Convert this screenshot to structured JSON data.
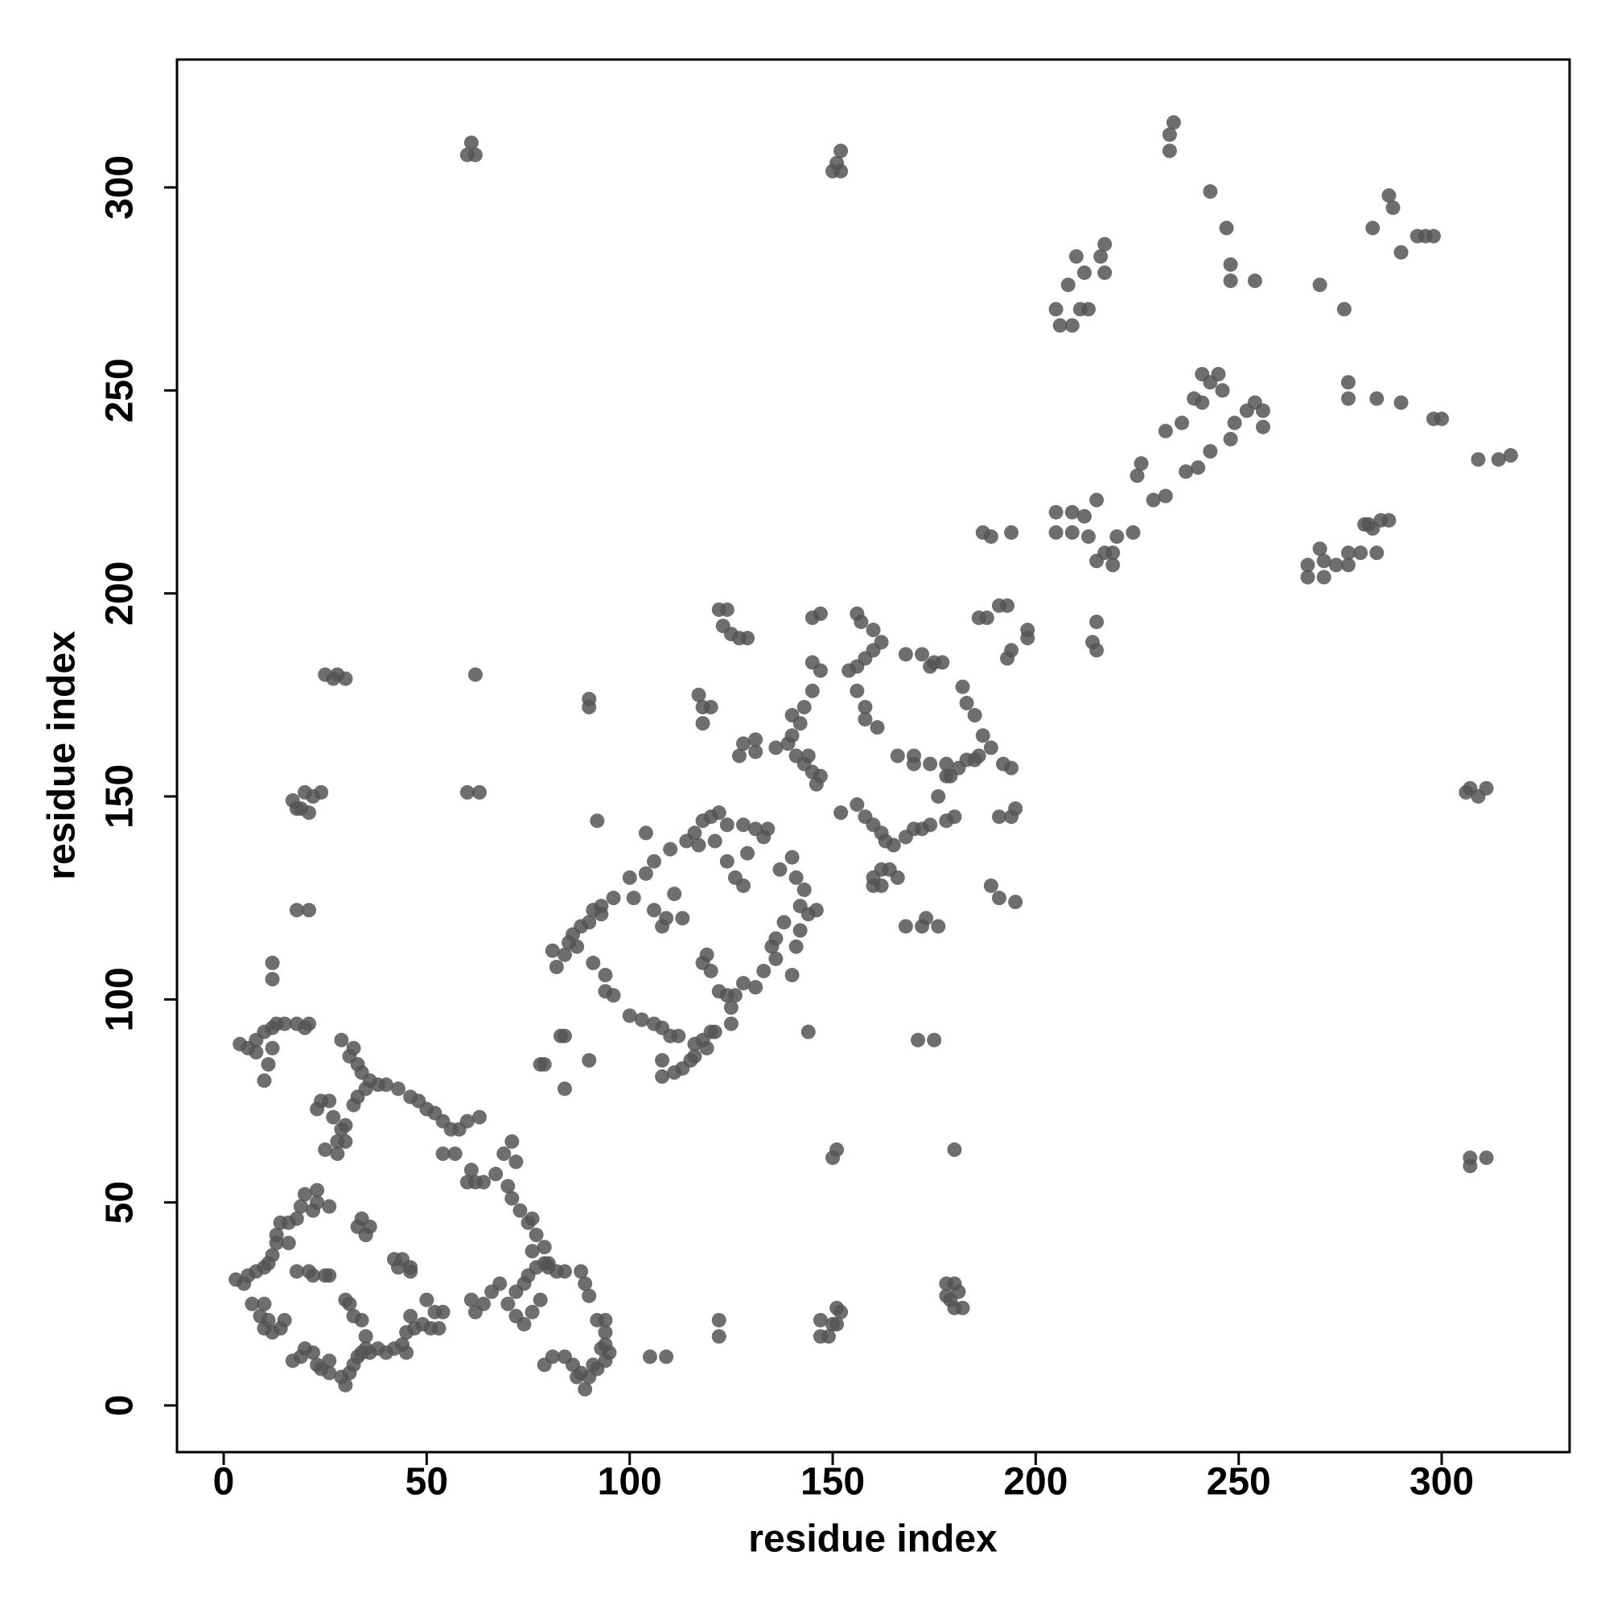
{
  "chart_data": {
    "type": "scatter",
    "xlabel": "residue index",
    "ylabel": "residue index",
    "color": "#555555",
    "xlim": [
      -11.5,
      331.5
    ],
    "ylim": [
      -11.5,
      331.5
    ],
    "xticks": [
      0,
      50,
      100,
      150,
      200,
      250,
      300
    ],
    "yticks": [
      0,
      50,
      100,
      150,
      200,
      250,
      300
    ],
    "x": [
      60,
      61,
      62,
      150,
      151,
      152,
      152,
      233,
      233,
      234,
      243,
      247,
      248,
      248,
      254,
      287,
      288,
      283,
      290,
      294,
      296,
      298,
      205,
      206,
      208,
      209,
      210,
      211,
      212,
      216,
      217,
      217,
      213,
      270,
      276,
      241,
      243,
      245,
      246,
      239,
      241,
      236,
      232,
      249,
      252,
      254,
      256,
      256,
      248,
      243,
      240,
      237,
      232,
      229,
      225,
      226,
      277,
      277,
      284,
      290,
      298,
      300,
      309,
      314,
      317,
      205,
      209,
      212,
      215,
      205,
      209,
      213,
      219,
      215,
      219,
      220,
      224,
      217,
      187,
      189,
      194,
      215,
      214,
      215,
      267,
      267,
      270,
      271,
      271,
      274,
      277,
      277,
      281,
      280,
      283,
      285,
      287,
      284,
      282,
      306,
      307,
      309,
      311,
      307,
      307,
      311,
      122,
      124,
      123,
      125,
      127,
      129,
      145,
      147,
      145,
      147,
      145,
      143,
      140,
      140,
      139,
      142,
      141,
      143,
      145,
      147,
      146,
      144,
      156,
      157,
      160,
      162,
      160,
      158,
      156,
      154,
      156,
      158,
      158,
      161,
      168,
      172,
      175,
      177,
      174,
      182,
      183,
      185,
      187,
      183,
      181,
      179,
      185,
      189,
      186,
      192,
      194,
      195,
      194,
      191,
      195,
      191,
      189,
      193,
      194,
      198,
      198,
      186,
      188,
      191,
      193,
      166,
      170,
      170,
      174,
      178,
      178,
      178,
      180,
      176,
      152,
      156,
      158,
      160,
      162,
      163,
      165,
      168,
      170,
      172,
      174,
      160,
      162,
      162,
      164,
      166,
      160,
      168,
      172,
      173,
      176,
      171,
      175,
      180,
      117,
      118,
      118,
      120,
      131,
      131,
      127,
      128,
      136,
      104,
      100,
      104,
      106,
      110,
      114,
      116,
      118,
      120,
      122,
      124,
      128,
      131,
      134,
      133,
      129,
      124,
      126,
      128,
      121,
      117,
      137,
      140,
      141,
      143,
      142,
      144,
      146,
      138,
      136,
      135,
      136,
      133,
      131,
      128,
      126,
      124,
      140,
      141,
      142,
      101,
      96,
      93,
      90,
      88,
      86,
      85,
      84,
      81,
      82,
      87,
      91,
      93,
      91,
      94,
      94,
      96,
      100,
      103,
      106,
      108,
      110,
      112,
      116,
      118,
      119,
      120,
      121,
      116,
      113,
      111,
      108,
      108,
      119,
      120,
      118,
      122,
      125,
      125,
      115,
      109,
      108,
      113,
      111,
      106,
      84,
      83,
      78,
      79,
      84,
      90,
      92,
      90,
      90,
      144,
      62,
      60,
      63,
      25,
      27,
      28,
      30,
      17,
      18,
      20,
      22,
      24,
      21,
      19,
      18,
      21,
      12,
      12,
      4,
      6,
      8,
      8,
      10,
      12,
      13,
      15,
      18,
      20,
      21,
      12,
      11,
      10,
      29,
      32,
      33,
      34,
      36,
      40,
      43,
      46,
      48,
      50,
      52,
      54,
      56,
      58,
      31,
      24,
      23,
      26,
      27,
      29,
      28,
      28,
      25,
      30,
      30,
      32,
      33,
      35,
      38,
      54,
      57,
      60,
      63,
      60,
      62,
      61,
      64,
      67,
      70,
      71,
      73,
      75,
      77,
      79,
      80,
      82,
      84,
      88,
      89,
      90,
      76,
      69,
      71,
      72,
      61,
      62,
      64,
      66,
      68,
      70,
      72,
      74,
      76,
      72,
      74,
      75,
      77,
      79,
      76,
      78,
      80,
      79,
      81,
      84,
      86,
      88,
      90,
      92,
      94,
      95,
      94,
      94,
      94,
      92,
      87,
      89,
      91,
      93,
      105,
      109,
      122,
      122,
      147,
      147,
      149,
      150,
      151,
      151,
      152,
      150,
      151,
      178,
      180,
      179,
      180,
      182,
      178,
      181,
      3,
      5,
      6,
      8,
      10,
      11,
      12,
      13,
      13,
      14,
      16,
      16,
      18,
      19,
      20,
      22,
      23,
      23,
      26,
      18,
      21,
      22,
      25,
      26,
      7,
      9,
      10,
      11,
      10,
      12,
      14,
      15,
      17,
      19,
      20,
      22,
      23,
      24,
      26,
      26,
      29,
      30,
      31,
      32,
      33,
      34,
      35,
      36,
      38,
      40,
      42,
      44,
      45,
      45,
      47,
      49,
      51,
      52,
      54,
      53,
      50,
      46,
      46,
      43,
      42,
      44,
      46,
      33,
      34,
      36,
      35,
      31,
      32,
      34,
      35,
      30
    ],
    "values": [
      308,
      311,
      308,
      304,
      306,
      309,
      304,
      309,
      313,
      316,
      299,
      290,
      281,
      277,
      277,
      298,
      295,
      290,
      284,
      288,
      288,
      288,
      270,
      266,
      276,
      266,
      283,
      270,
      279,
      283,
      286,
      279,
      270,
      276,
      270,
      254,
      252,
      254,
      250,
      248,
      247,
      242,
      240,
      242,
      245,
      247,
      245,
      241,
      238,
      235,
      231,
      230,
      224,
      223,
      229,
      232,
      252,
      248,
      248,
      247,
      243,
      243,
      233,
      233,
      234,
      220,
      220,
      219,
      223,
      215,
      215,
      214,
      210,
      208,
      207,
      214,
      215,
      210,
      215,
      214,
      215,
      193,
      188,
      186,
      207,
      204,
      211,
      208,
      204,
      207,
      207,
      210,
      217,
      210,
      216,
      218,
      218,
      210,
      217,
      151,
      152,
      150,
      152,
      61,
      59,
      61,
      196,
      196,
      192,
      190,
      189,
      189,
      194,
      195,
      183,
      181,
      176,
      172,
      170,
      165,
      163,
      168,
      160,
      158,
      156,
      155,
      153,
      160,
      195,
      193,
      191,
      188,
      186,
      184,
      182,
      181,
      176,
      172,
      169,
      167,
      185,
      185,
      183,
      183,
      182,
      177,
      173,
      170,
      165,
      159,
      157,
      155,
      159,
      162,
      160,
      158,
      157,
      147,
      145,
      145,
      124,
      125,
      128,
      184,
      186,
      191,
      189,
      194,
      194,
      197,
      197,
      160,
      160,
      158,
      158,
      158,
      155,
      144,
      145,
      150,
      146,
      148,
      145,
      143,
      141,
      139,
      138,
      140,
      142,
      142,
      143,
      130,
      128,
      132,
      132,
      130,
      128,
      118,
      118,
      120,
      118,
      90,
      90,
      63,
      175,
      172,
      168,
      172,
      164,
      161,
      160,
      163,
      162,
      141,
      130,
      131,
      134,
      137,
      139,
      141,
      144,
      145,
      146,
      143,
      143,
      142,
      142,
      140,
      136,
      134,
      130,
      128,
      139,
      138,
      132,
      135,
      130,
      127,
      123,
      121,
      122,
      119,
      115,
      113,
      110,
      107,
      103,
      104,
      101,
      101,
      106,
      113,
      117,
      125,
      125,
      121,
      119,
      118,
      116,
      114,
      111,
      112,
      108,
      113,
      122,
      123,
      109,
      106,
      102,
      101,
      96,
      95,
      94,
      93,
      91,
      91,
      89,
      90,
      88,
      92,
      92,
      86,
      83,
      82,
      81,
      85,
      111,
      107,
      109,
      102,
      98,
      94,
      85,
      120,
      118,
      120,
      126,
      122,
      91,
      91,
      84,
      84,
      78,
      85,
      144,
      174,
      172,
      92,
      180,
      151,
      151,
      180,
      179,
      180,
      179,
      149,
      147,
      151,
      150,
      151,
      146,
      147,
      122,
      122,
      109,
      105,
      89,
      88,
      87,
      90,
      92,
      93,
      94,
      94,
      94,
      93,
      94,
      88,
      84,
      80,
      90,
      88,
      84,
      82,
      80,
      79,
      78,
      76,
      75,
      73,
      72,
      70,
      68,
      68,
      86,
      75,
      73,
      75,
      71,
      68,
      65,
      62,
      63,
      69,
      65,
      74,
      76,
      78,
      79,
      62,
      62,
      70,
      71,
      55,
      55,
      58,
      55,
      57,
      54,
      51,
      48,
      45,
      42,
      39,
      35,
      33,
      33,
      33,
      30,
      27,
      46,
      62,
      65,
      60,
      26,
      23,
      25,
      28,
      30,
      25,
      22,
      20,
      23,
      28,
      30,
      32,
      34,
      35,
      38,
      26,
      34,
      10,
      12,
      12,
      10,
      8,
      7,
      9,
      11,
      13,
      15,
      18,
      21,
      21,
      7,
      4,
      10,
      14,
      12,
      12,
      21,
      17,
      17,
      21,
      17,
      20,
      24,
      20,
      23,
      61,
      63,
      30,
      30,
      26,
      24,
      24,
      27,
      28,
      31,
      30,
      32,
      33,
      34,
      35,
      37,
      40,
      42,
      45,
      45,
      40,
      46,
      49,
      52,
      48,
      53,
      50,
      49,
      33,
      33,
      32,
      32,
      32,
      25,
      22,
      25,
      21,
      19,
      18,
      19,
      21,
      11,
      12,
      14,
      13,
      10,
      9,
      8,
      11,
      7,
      5,
      8,
      10,
      12,
      13,
      14,
      13,
      14,
      13,
      14,
      15,
      13,
      18,
      19,
      20,
      19,
      23,
      23,
      19,
      26,
      22,
      33,
      34,
      36,
      36,
      34,
      44,
      46,
      44,
      42,
      25,
      22,
      21,
      17,
      26
    ]
  }
}
